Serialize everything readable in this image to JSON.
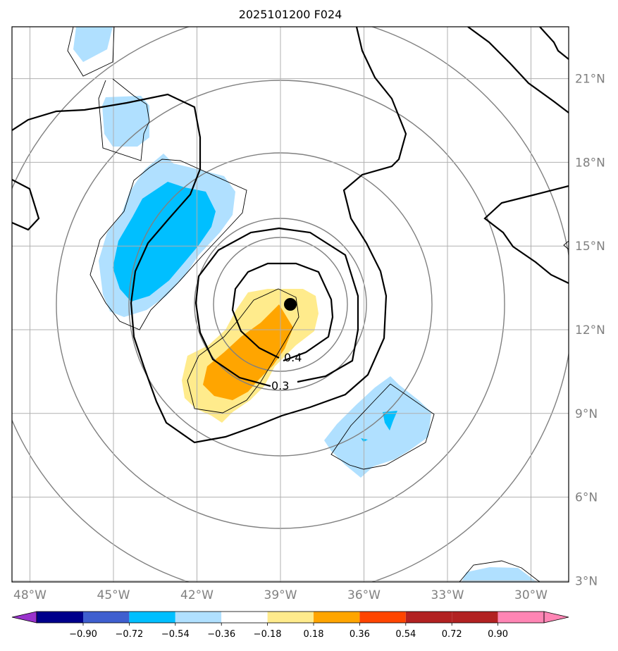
{
  "title": "2025101200 F024",
  "map": {
    "lon_labels": [
      "48°W",
      "45°W",
      "42°W",
      "39°W",
      "36°W",
      "33°W",
      "30°W"
    ],
    "lon_values": [
      -48,
      -45,
      -42,
      -39,
      -36,
      -33,
      -30
    ],
    "lat_labels": [
      "21°N",
      "18°N",
      "15°N",
      "12°N",
      "9°N",
      "6°N",
      "3°N"
    ],
    "lat_values": [
      21,
      18,
      15,
      12,
      9,
      6,
      3
    ],
    "center_marker": {
      "lon": -38.6,
      "lat": 13.0,
      "name": "storm-center"
    },
    "contour_labels": [
      {
        "text": "0.4",
        "lon": -38.3,
        "lat": 11.0
      },
      {
        "text": "0.3",
        "lon": -39.3,
        "lat": 10.0
      }
    ]
  },
  "colorbar": {
    "tick_labels": [
      "−0.90",
      "−0.72",
      "−0.54",
      "−0.36",
      "−0.18",
      "0.18",
      "0.36",
      "0.54",
      "0.72",
      "0.90"
    ],
    "colors": [
      "#9932cc",
      "#00008b",
      "#3f5fcf",
      "#00bfff",
      "#b0e0ff",
      "#ffffff",
      "#ffeb8c",
      "#ffa500",
      "#ff4500",
      "#b22222",
      "#ff85b4"
    ]
  }
}
